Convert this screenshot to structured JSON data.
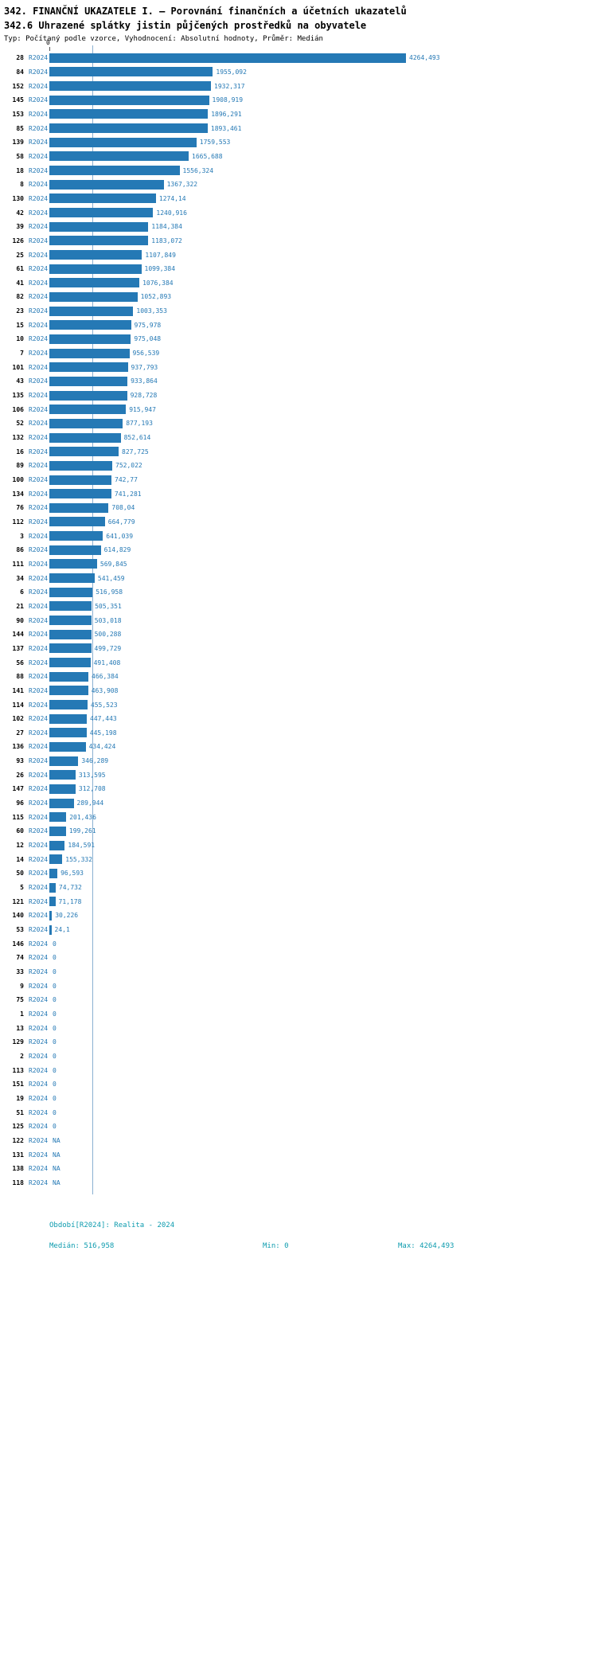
{
  "header": {
    "title1": "342. FINANČNÍ UKAZATELE I. — Porovnání finančních a účetních ukazatelů",
    "title2": "342.6 Uhrazené splátky jistin půjčených prostředků na obyvatele",
    "meta": "Typ: Počítaný podle vzorce, Vyhodnocení: Absolutní hodnoty, Průměr: Medián"
  },
  "chart_data": {
    "type": "bar",
    "orientation": "horizontal",
    "period_label": "R2024",
    "axis": {
      "origin_label": "0",
      "min": 0,
      "max": 4264.493
    },
    "median": 516.958,
    "legend_position": "none",
    "rows": [
      {
        "id": "28",
        "value": 4264.493,
        "display": "4264,493"
      },
      {
        "id": "84",
        "value": 1955.092,
        "display": "1955,092"
      },
      {
        "id": "152",
        "value": 1932.317,
        "display": "1932,317"
      },
      {
        "id": "145",
        "value": 1908.919,
        "display": "1908,919"
      },
      {
        "id": "153",
        "value": 1896.291,
        "display": "1896,291"
      },
      {
        "id": "85",
        "value": 1893.461,
        "display": "1893,461"
      },
      {
        "id": "139",
        "value": 1759.553,
        "display": "1759,553"
      },
      {
        "id": "58",
        "value": 1665.688,
        "display": "1665,688"
      },
      {
        "id": "18",
        "value": 1556.324,
        "display": "1556,324"
      },
      {
        "id": "8",
        "value": 1367.322,
        "display": "1367,322"
      },
      {
        "id": "130",
        "value": 1274.14,
        "display": "1274,14"
      },
      {
        "id": "42",
        "value": 1240.916,
        "display": "1240,916"
      },
      {
        "id": "39",
        "value": 1184.384,
        "display": "1184,384"
      },
      {
        "id": "126",
        "value": 1183.072,
        "display": "1183,072"
      },
      {
        "id": "25",
        "value": 1107.849,
        "display": "1107,849"
      },
      {
        "id": "61",
        "value": 1099.384,
        "display": "1099,384"
      },
      {
        "id": "41",
        "value": 1076.384,
        "display": "1076,384"
      },
      {
        "id": "82",
        "value": 1052.893,
        "display": "1052,893"
      },
      {
        "id": "23",
        "value": 1003.353,
        "display": "1003,353"
      },
      {
        "id": "15",
        "value": 975.978,
        "display": "975,978"
      },
      {
        "id": "10",
        "value": 975.048,
        "display": "975,048"
      },
      {
        "id": "7",
        "value": 956.539,
        "display": "956,539"
      },
      {
        "id": "101",
        "value": 937.793,
        "display": "937,793"
      },
      {
        "id": "43",
        "value": 933.864,
        "display": "933,864"
      },
      {
        "id": "135",
        "value": 928.728,
        "display": "928,728"
      },
      {
        "id": "106",
        "value": 915.947,
        "display": "915,947"
      },
      {
        "id": "52",
        "value": 877.193,
        "display": "877,193"
      },
      {
        "id": "132",
        "value": 852.614,
        "display": "852,614"
      },
      {
        "id": "16",
        "value": 827.725,
        "display": "827,725"
      },
      {
        "id": "89",
        "value": 752.022,
        "display": "752,022"
      },
      {
        "id": "100",
        "value": 742.77,
        "display": "742,77"
      },
      {
        "id": "134",
        "value": 741.281,
        "display": "741,281"
      },
      {
        "id": "76",
        "value": 708.04,
        "display": "708,04"
      },
      {
        "id": "112",
        "value": 664.779,
        "display": "664,779"
      },
      {
        "id": "3",
        "value": 641.039,
        "display": "641,039"
      },
      {
        "id": "86",
        "value": 614.829,
        "display": "614,829"
      },
      {
        "id": "111",
        "value": 569.845,
        "display": "569,845"
      },
      {
        "id": "34",
        "value": 541.459,
        "display": "541,459"
      },
      {
        "id": "6",
        "value": 516.958,
        "display": "516,958"
      },
      {
        "id": "21",
        "value": 505.351,
        "display": "505,351"
      },
      {
        "id": "90",
        "value": 503.018,
        "display": "503,018"
      },
      {
        "id": "144",
        "value": 500.288,
        "display": "500,288"
      },
      {
        "id": "137",
        "value": 499.729,
        "display": "499,729"
      },
      {
        "id": "56",
        "value": 491.408,
        "display": "491,408"
      },
      {
        "id": "88",
        "value": 466.384,
        "display": "466,384"
      },
      {
        "id": "141",
        "value": 463.908,
        "display": "463,908"
      },
      {
        "id": "114",
        "value": 455.523,
        "display": "455,523"
      },
      {
        "id": "102",
        "value": 447.443,
        "display": "447,443"
      },
      {
        "id": "27",
        "value": 445.198,
        "display": "445,198"
      },
      {
        "id": "136",
        "value": 434.424,
        "display": "434,424"
      },
      {
        "id": "93",
        "value": 346.289,
        "display": "346,289"
      },
      {
        "id": "26",
        "value": 313.595,
        "display": "313,595"
      },
      {
        "id": "147",
        "value": 312.708,
        "display": "312,708"
      },
      {
        "id": "96",
        "value": 289.944,
        "display": "289,944"
      },
      {
        "id": "115",
        "value": 201.436,
        "display": "201,436"
      },
      {
        "id": "60",
        "value": 199.261,
        "display": "199,261"
      },
      {
        "id": "12",
        "value": 184.591,
        "display": "184,591"
      },
      {
        "id": "14",
        "value": 155.332,
        "display": "155,332"
      },
      {
        "id": "50",
        "value": 96.593,
        "display": "96,593"
      },
      {
        "id": "5",
        "value": 74.732,
        "display": "74,732"
      },
      {
        "id": "121",
        "value": 71.178,
        "display": "71,178"
      },
      {
        "id": "140",
        "value": 30.226,
        "display": "30,226"
      },
      {
        "id": "53",
        "value": 24.1,
        "display": "24,1"
      },
      {
        "id": "146",
        "value": 0,
        "display": "0"
      },
      {
        "id": "74",
        "value": 0,
        "display": "0"
      },
      {
        "id": "33",
        "value": 0,
        "display": "0"
      },
      {
        "id": "9",
        "value": 0,
        "display": "0"
      },
      {
        "id": "75",
        "value": 0,
        "display": "0"
      },
      {
        "id": "1",
        "value": 0,
        "display": "0"
      },
      {
        "id": "13",
        "value": 0,
        "display": "0"
      },
      {
        "id": "129",
        "value": 0,
        "display": "0"
      },
      {
        "id": "2",
        "value": 0,
        "display": "0"
      },
      {
        "id": "113",
        "value": 0,
        "display": "0"
      },
      {
        "id": "151",
        "value": 0,
        "display": "0"
      },
      {
        "id": "19",
        "value": 0,
        "display": "0"
      },
      {
        "id": "51",
        "value": 0,
        "display": "0"
      },
      {
        "id": "125",
        "value": 0,
        "display": "0"
      },
      {
        "id": "122",
        "value": null,
        "display": "NA"
      },
      {
        "id": "131",
        "value": null,
        "display": "NA"
      },
      {
        "id": "138",
        "value": null,
        "display": "NA"
      },
      {
        "id": "118",
        "value": null,
        "display": "NA"
      }
    ],
    "colors": {
      "bar": "#2579b5",
      "value_text": "#2579b5",
      "median_line": "#8ab0d2",
      "footer_text": "#0d9bae"
    }
  },
  "footer": {
    "period_line": "Období[R2024]: Realita - 2024",
    "median_label": "Medián: 516,958",
    "min_label": "Min: 0",
    "max_label": "Max: 4264,493"
  }
}
